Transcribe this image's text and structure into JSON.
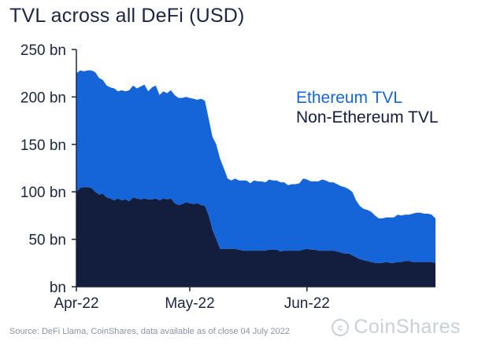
{
  "header": {
    "title": "TVL across all DeFi (USD)"
  },
  "footer": {
    "source": "Source: DeFi Llama, CoinShares, data available as of close 04 July 2022",
    "brand": "CoinShares"
  },
  "colors": {
    "ethereum": "#1565d8",
    "non_ethereum": "#131e3e",
    "axis": "#1b2540"
  },
  "chart_data": {
    "type": "area",
    "stacked": true,
    "title": "TVL across all DeFi (USD)",
    "xlabel": "",
    "ylabel": "",
    "ylim": [
      0,
      250
    ],
    "y_ticks": [
      0,
      50,
      100,
      150,
      200,
      250
    ],
    "y_tick_labels": [
      "bn",
      "50 bn",
      "100 bn",
      "150 bn",
      "200 bn",
      "250 bn"
    ],
    "x_tick_labels": [
      "Apr-22",
      "May-22",
      "Jun-22"
    ],
    "x_tick_days": [
      0,
      30,
      61
    ],
    "x_range_days": [
      0,
      95
    ],
    "legend": [
      "Ethereum TVL",
      "Non-Ethereum TVL"
    ],
    "legend_position": "right",
    "days": [
      0,
      1,
      2,
      3,
      4,
      5,
      6,
      7,
      8,
      9,
      10,
      11,
      12,
      13,
      14,
      15,
      16,
      17,
      18,
      19,
      20,
      21,
      22,
      23,
      24,
      25,
      26,
      27,
      28,
      29,
      30,
      31,
      32,
      33,
      34,
      35,
      36,
      37,
      38,
      39,
      40,
      41,
      42,
      43,
      44,
      45,
      46,
      47,
      48,
      49,
      50,
      51,
      52,
      53,
      54,
      55,
      56,
      57,
      58,
      59,
      60,
      61,
      62,
      63,
      64,
      65,
      66,
      67,
      68,
      69,
      70,
      71,
      72,
      73,
      74,
      75,
      76,
      77,
      78,
      79,
      80,
      81,
      82,
      83,
      84,
      85,
      86,
      87,
      88,
      89,
      90,
      91,
      92,
      93,
      94,
      95
    ],
    "series": [
      {
        "name": "Non-Ethereum TVL",
        "values": [
          100,
          104,
          105,
          105,
          104,
          100,
          97,
          98,
          94,
          93,
          91,
          93,
          91,
          92,
          90,
          94,
          93,
          92,
          93,
          92,
          92,
          93,
          91,
          93,
          92,
          93,
          88,
          86,
          87,
          89,
          88,
          87,
          88,
          86,
          85,
          75,
          60,
          50,
          40,
          40,
          40,
          40,
          40,
          39,
          38,
          38,
          38,
          38,
          38,
          38,
          38,
          39,
          39,
          39,
          37,
          38,
          38,
          38,
          38,
          38,
          39,
          40,
          39,
          39,
          38,
          38,
          38,
          38,
          38,
          37,
          36,
          35,
          35,
          33,
          31,
          29,
          28,
          27,
          26,
          25,
          25,
          25,
          26,
          25,
          25,
          26,
          26,
          27,
          27,
          26,
          26,
          26,
          26,
          26,
          26,
          25
        ]
      },
      {
        "name": "Ethereum TVL",
        "values": [
          125,
          124,
          122,
          123,
          124,
          126,
          123,
          120,
          118,
          117,
          118,
          113,
          116,
          114,
          117,
          118,
          116,
          119,
          120,
          114,
          118,
          119,
          111,
          113,
          112,
          114,
          114,
          113,
          112,
          111,
          111,
          111,
          109,
          112,
          111,
          102,
          98,
          100,
          95,
          85,
          74,
          72,
          74,
          73,
          74,
          74,
          71,
          74,
          73,
          73,
          72,
          74,
          73,
          73,
          73,
          72,
          69,
          70,
          70,
          71,
          75,
          73,
          72,
          72,
          73,
          75,
          74,
          72,
          72,
          71,
          70,
          70,
          68,
          67,
          60,
          56,
          54,
          54,
          53,
          50,
          47,
          47,
          47,
          48,
          48,
          50,
          49,
          49,
          49,
          51,
          52,
          52,
          51,
          51,
          50,
          47
        ]
      }
    ]
  }
}
